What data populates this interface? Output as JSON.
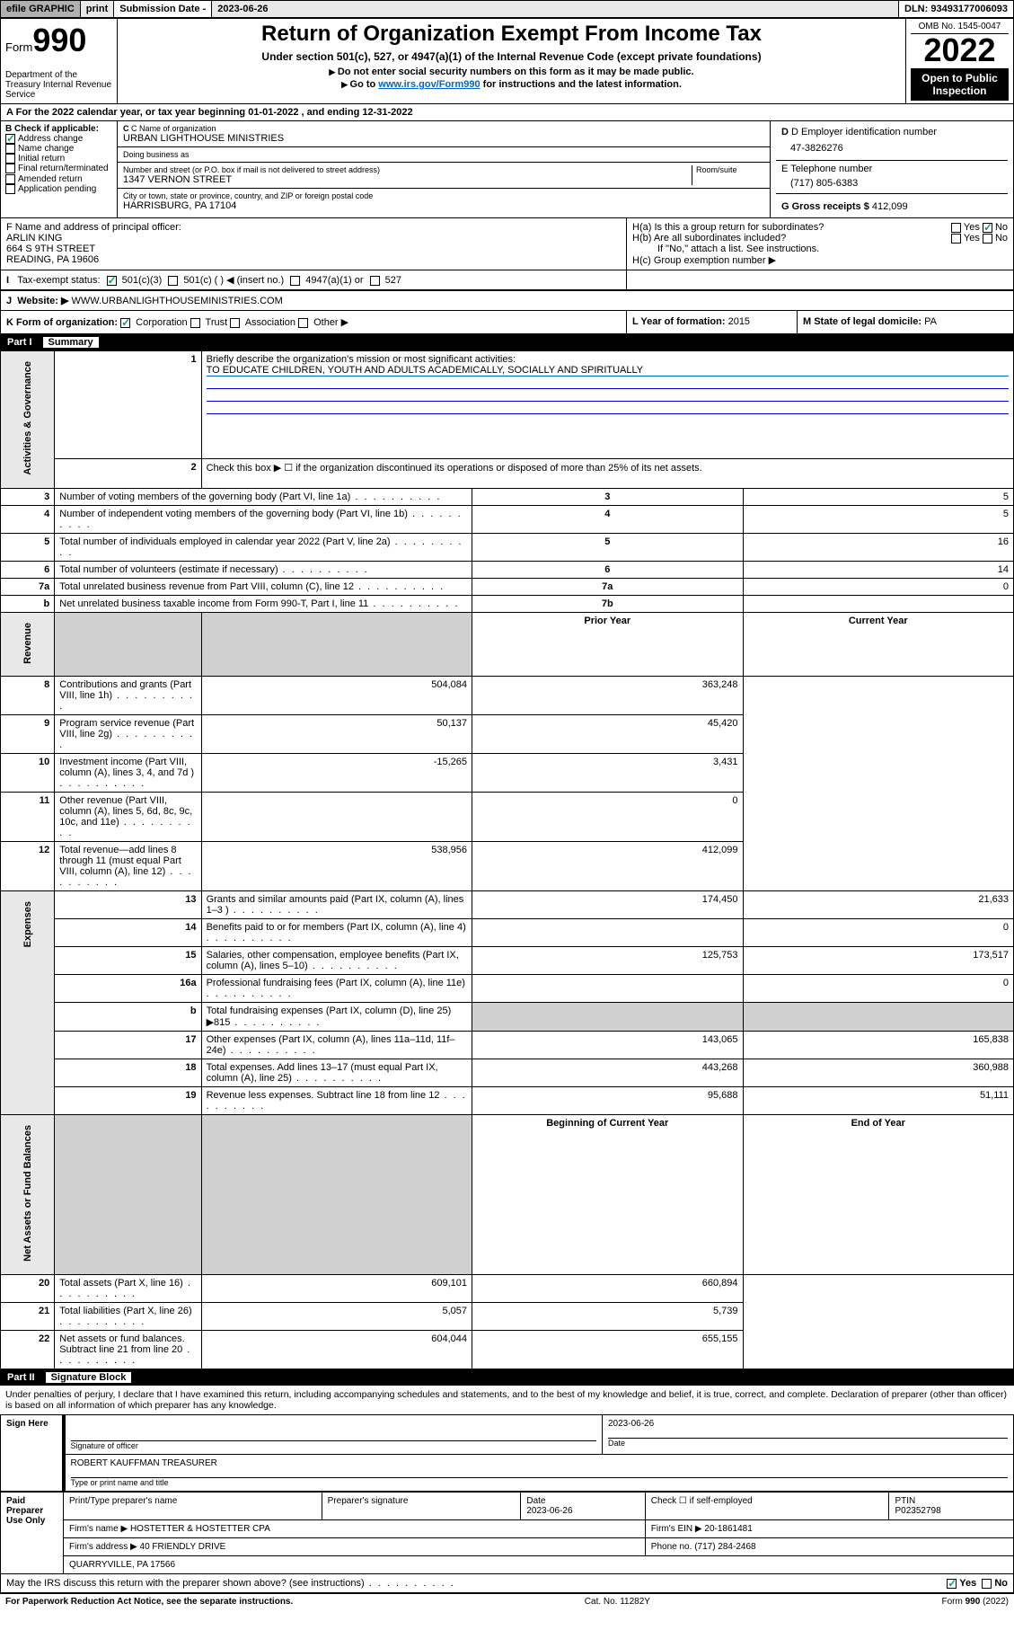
{
  "topbar": {
    "efile": "efile GRAPHIC",
    "print": "print",
    "sub_label": "Submission Date -",
    "sub_date": "2023-06-26",
    "dln": "DLN: 93493177006093"
  },
  "header": {
    "form_prefix": "Form",
    "form_number": "990",
    "dept": "Department of the Treasury Internal Revenue Service",
    "title": "Return of Organization Exempt From Income Tax",
    "sub1": "Under section 501(c), 527, or 4947(a)(1) of the Internal Revenue Code (except private foundations)",
    "sub2": "Do not enter social security numbers on this form as it may be made public.",
    "sub3_pre": "Go to ",
    "sub3_link": "www.irs.gov/Form990",
    "sub3_post": " for instructions and the latest information.",
    "omb": "OMB No. 1545-0047",
    "year": "2022",
    "open_pub": "Open to Public Inspection"
  },
  "rowA": "For the 2022 calendar year, or tax year beginning 01-01-2022   , and ending 12-31-2022",
  "sectionB": {
    "label": "B Check if applicable:",
    "items": [
      "Address change",
      "Name change",
      "Initial return",
      "Final return/terminated",
      "Amended return",
      "Application pending"
    ],
    "checked": [
      true,
      false,
      false,
      false,
      false,
      false
    ]
  },
  "sectionC": {
    "name_label": "C Name of organization",
    "name": "URBAN LIGHTHOUSE MINISTRIES",
    "dba_label": "Doing business as",
    "dba": "",
    "street_label": "Number and street (or P.O. box if mail is not delivered to street address)",
    "room_label": "Room/suite",
    "street": "1347 VERNON STREET",
    "city_label": "City or town, state or province, country, and ZIP or foreign postal code",
    "city": "HARRISBURG, PA  17104"
  },
  "sectionD": {
    "label": "D Employer identification number",
    "value": "47-3826276"
  },
  "sectionE": {
    "label": "E Telephone number",
    "value": "(717) 805-6383"
  },
  "sectionG": {
    "label": "G Gross receipts $",
    "value": "412,099"
  },
  "sectionF": {
    "label": "F  Name and address of principal officer:",
    "name": "ARLIN KING",
    "street": "664 S 9TH STREET",
    "city": "READING, PA  19606"
  },
  "sectionH": {
    "ha": "H(a)  Is this a group return for subordinates?",
    "ha_no": true,
    "hb": "H(b)  Are all subordinates included?",
    "hb_note": "If \"No,\" attach a list. See instructions.",
    "hc": "H(c)  Group exemption number ▶"
  },
  "rowI": {
    "label": "Tax-exempt status:",
    "opts": [
      "501(c)(3)",
      "501(c) (  ) ◀ (insert no.)",
      "4947(a)(1) or",
      "527"
    ],
    "checked": 0
  },
  "rowJ": {
    "label": "Website: ▶",
    "value": "WWW.URBANLIGHTHOUSEMINISTRIES.COM"
  },
  "rowK": {
    "label": "K Form of organization:",
    "opts": [
      "Corporation",
      "Trust",
      "Association",
      "Other ▶"
    ],
    "checked": 0,
    "L_label": "L Year of formation:",
    "L_val": "2015",
    "M_label": "M State of legal domicile:",
    "M_val": "PA"
  },
  "part1": {
    "num": "Part I",
    "title": "Summary"
  },
  "mission": {
    "q": "Briefly describe the organization's mission or most significant activities:",
    "text": "TO EDUCATE CHILDREN, YOUTH AND ADULTS ACADEMICALLY, SOCIALLY AND SPIRITUALLY"
  },
  "line2": "Check this box ▶ ☐  if the organization discontinued its operations or disposed of more than 25% of its net assets.",
  "gov_lines": [
    {
      "n": "3",
      "d": "Number of voting members of the governing body (Part VI, line 1a)",
      "box": "3",
      "v": "5"
    },
    {
      "n": "4",
      "d": "Number of independent voting members of the governing body (Part VI, line 1b)",
      "box": "4",
      "v": "5"
    },
    {
      "n": "5",
      "d": "Total number of individuals employed in calendar year 2022 (Part V, line 2a)",
      "box": "5",
      "v": "16"
    },
    {
      "n": "6",
      "d": "Total number of volunteers (estimate if necessary)",
      "box": "6",
      "v": "14"
    },
    {
      "n": "7a",
      "d": "Total unrelated business revenue from Part VIII, column (C), line 12",
      "box": "7a",
      "v": "0"
    },
    {
      "n": "b",
      "d": "Net unrelated business taxable income from Form 990-T, Part I, line 11",
      "box": "7b",
      "v": ""
    }
  ],
  "yearcols": {
    "prior": "Prior Year",
    "current": "Current Year"
  },
  "rev_lines": [
    {
      "n": "8",
      "d": "Contributions and grants (Part VIII, line 1h)",
      "p": "504,084",
      "c": "363,248"
    },
    {
      "n": "9",
      "d": "Program service revenue (Part VIII, line 2g)",
      "p": "50,137",
      "c": "45,420"
    },
    {
      "n": "10",
      "d": "Investment income (Part VIII, column (A), lines 3, 4, and 7d )",
      "p": "-15,265",
      "c": "3,431"
    },
    {
      "n": "11",
      "d": "Other revenue (Part VIII, column (A), lines 5, 6d, 8c, 9c, 10c, and 11e)",
      "p": "",
      "c": "0"
    },
    {
      "n": "12",
      "d": "Total revenue—add lines 8 through 11 (must equal Part VIII, column (A), line 12)",
      "p": "538,956",
      "c": "412,099"
    }
  ],
  "exp_lines": [
    {
      "n": "13",
      "d": "Grants and similar amounts paid (Part IX, column (A), lines 1–3 )",
      "p": "174,450",
      "c": "21,633"
    },
    {
      "n": "14",
      "d": "Benefits paid to or for members (Part IX, column (A), line 4)",
      "p": "",
      "c": "0"
    },
    {
      "n": "15",
      "d": "Salaries, other compensation, employee benefits (Part IX, column (A), lines 5–10)",
      "p": "125,753",
      "c": "173,517"
    },
    {
      "n": "16a",
      "d": "Professional fundraising fees (Part IX, column (A), line 11e)",
      "p": "",
      "c": "0"
    },
    {
      "n": "b",
      "d": "Total fundraising expenses (Part IX, column (D), line 25) ▶815",
      "p": "GREY",
      "c": "GREY"
    },
    {
      "n": "17",
      "d": "Other expenses (Part IX, column (A), lines 11a–11d, 11f–24e)",
      "p": "143,065",
      "c": "165,838"
    },
    {
      "n": "18",
      "d": "Total expenses. Add lines 13–17 (must equal Part IX, column (A), line 25)",
      "p": "443,268",
      "c": "360,988"
    },
    {
      "n": "19",
      "d": "Revenue less expenses. Subtract line 18 from line 12",
      "p": "95,688",
      "c": "51,111"
    }
  ],
  "na_hdr": {
    "b": "Beginning of Current Year",
    "e": "End of Year"
  },
  "na_lines": [
    {
      "n": "20",
      "d": "Total assets (Part X, line 16)",
      "p": "609,101",
      "c": "660,894"
    },
    {
      "n": "21",
      "d": "Total liabilities (Part X, line 26)",
      "p": "5,057",
      "c": "5,739"
    },
    {
      "n": "22",
      "d": "Net assets or fund balances. Subtract line 21 from line 20",
      "p": "604,044",
      "c": "655,155"
    }
  ],
  "vtabs": {
    "gov": "Activities & Governance",
    "rev": "Revenue",
    "exp": "Expenses",
    "na": "Net Assets or Fund Balances"
  },
  "part2": {
    "num": "Part II",
    "title": "Signature Block"
  },
  "sig_decl": "Under penalties of perjury, I declare that I have examined this return, including accompanying schedules and statements, and to the best of my knowledge and belief, it is true, correct, and complete. Declaration of preparer (other than officer) is based on all information of which preparer has any knowledge.",
  "sign_here": {
    "label": "Sign Here",
    "sig_label": "Signature of officer",
    "date": "2023-06-26",
    "date_label": "Date",
    "name": "ROBERT KAUFFMAN TREASURER",
    "name_label": "Type or print name and title"
  },
  "preparer": {
    "label": "Paid Preparer Use Only",
    "cols": [
      "Print/Type preparer's name",
      "Preparer's signature",
      "Date",
      "",
      "PTIN"
    ],
    "date": "2023-06-26",
    "check_label": "Check ☐ if self-employed",
    "ptin": "P02352798",
    "firm_name_label": "Firm's name    ▶",
    "firm_name": "HOSTETTER & HOSTETTER CPA",
    "firm_ein_label": "Firm's EIN ▶",
    "firm_ein": "20-1861481",
    "firm_addr_label": "Firm's address ▶",
    "firm_addr1": "40 FRIENDLY DRIVE",
    "firm_addr2": "QUARRYVILLE, PA  17566",
    "phone_label": "Phone no.",
    "phone": "(717) 284-2468"
  },
  "discuss": {
    "q": "May the IRS discuss this return with the preparer shown above? (see instructions)",
    "yes": true
  },
  "footer": {
    "left": "For Paperwork Reduction Act Notice, see the separate instructions.",
    "mid": "Cat. No. 11282Y",
    "right": "Form 990 (2022)"
  }
}
